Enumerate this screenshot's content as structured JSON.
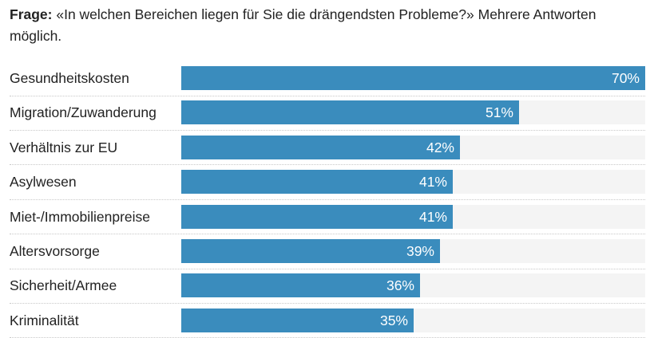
{
  "question": {
    "prefix": "Frage:",
    "text": " «In welchen Bereichen liegen für Sie die drängendsten Probleme?» Mehrere Antworten möglich."
  },
  "colors": {
    "bar": "#3a8cbd",
    "track": "#f4f4f4",
    "separator": "#c8c8c8"
  },
  "chart_data": {
    "type": "bar",
    "orientation": "horizontal",
    "title": "«In welchen Bereichen liegen für Sie die drängendsten Probleme?» Mehrere Antworten möglich.",
    "xlabel": "",
    "ylabel": "",
    "xlim": [
      0,
      70
    ],
    "unit": "%",
    "categories": [
      "Gesundheitskosten",
      "Migration/Zuwanderung",
      "Verhältnis zur EU",
      "Asylwesen",
      "Miet-/Immobilienpreise",
      "Altersvorsorge",
      "Sicherheit/Armee",
      "Kriminalität"
    ],
    "values": [
      70,
      51,
      42,
      41,
      41,
      39,
      36,
      35
    ],
    "value_labels": [
      "70%",
      "51%",
      "42%",
      "41%",
      "41%",
      "39%",
      "36%",
      "35%"
    ],
    "grid": false,
    "legend": "none"
  }
}
